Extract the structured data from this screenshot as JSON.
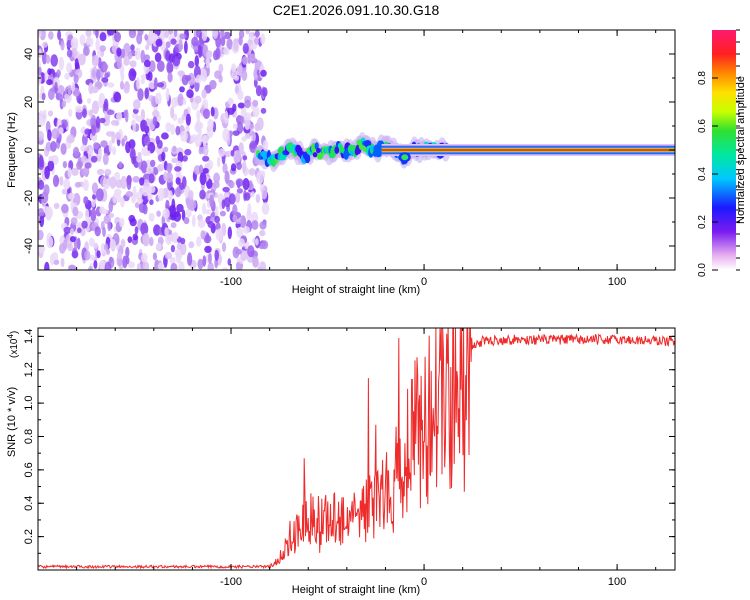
{
  "title": "C2E1.2026.091.10.30.G18",
  "chart_data": [
    {
      "type": "heatmap",
      "name": "spectrogram",
      "xlabel": "Height of straight line (km)",
      "ylabel": "Frequency (Hz)",
      "xlim": [
        -200,
        130
      ],
      "ylim": [
        -50,
        50
      ],
      "x_ticks": [
        {
          "value": -100,
          "label": "-100"
        },
        {
          "value": 0,
          "label": "0"
        },
        {
          "value": 100,
          "label": "100"
        }
      ],
      "y_ticks": [
        {
          "value": 40,
          "label": "40"
        },
        {
          "value": 20,
          "label": "20"
        },
        {
          "value": 0,
          "label": "0"
        },
        {
          "value": -20,
          "label": "-20"
        },
        {
          "value": -40,
          "label": "-40"
        }
      ],
      "noise_region_x": [
        -200,
        -84
      ],
      "signal_track": [
        [
          -86,
          -3
        ],
        [
          -80,
          -4
        ],
        [
          -74,
          -2
        ],
        [
          -68,
          1
        ],
        [
          -62,
          -3
        ],
        [
          -56,
          0
        ],
        [
          -50,
          -2
        ],
        [
          -44,
          1
        ],
        [
          -38,
          -1
        ],
        [
          -32,
          2
        ],
        [
          -26,
          0
        ],
        [
          -20,
          1
        ],
        [
          -16,
          0
        ],
        [
          -12,
          -2
        ],
        [
          -9,
          -3
        ],
        [
          -6,
          0
        ],
        [
          0,
          0
        ],
        [
          30,
          0
        ],
        [
          130,
          0
        ]
      ],
      "colorbar": {
        "label": "Normalized spectral amplitude",
        "range": [
          0,
          1
        ],
        "ticks": [
          {
            "value": 0.0,
            "label": "0.0"
          },
          {
            "value": 0.2,
            "label": "0.2"
          },
          {
            "value": 0.4,
            "label": "0.4"
          },
          {
            "value": 0.6,
            "label": "0.6"
          },
          {
            "value": 0.8,
            "label": "0.8"
          }
        ]
      }
    },
    {
      "type": "line",
      "name": "snr",
      "xlabel": "Height of straight line (km)",
      "ylabel": "SNR (10 * v/v)",
      "y_multiplier": "(x10",
      "y_multiplier_exp": "4",
      "y_multiplier_close": ")",
      "xlim": [
        -200,
        130
      ],
      "ylim": [
        0,
        1.45
      ],
      "x_ticks": [
        {
          "value": -100,
          "label": "-100"
        },
        {
          "value": 0,
          "label": "0"
        },
        {
          "value": 100,
          "label": "100"
        }
      ],
      "y_ticks": [
        {
          "value": 0.2,
          "label": "0.2"
        },
        {
          "value": 0.4,
          "label": "0.4"
        },
        {
          "value": 0.6,
          "label": "0.6"
        },
        {
          "value": 0.8,
          "label": "0.8"
        },
        {
          "value": 1.0,
          "label": "1.0"
        },
        {
          "value": 1.2,
          "label": "1.2"
        },
        {
          "value": 1.4,
          "label": "1.4"
        }
      ],
      "color": "#ee2a2a",
      "envelope": [
        [
          -200,
          0.02
        ],
        [
          -80,
          0.02
        ],
        [
          -76,
          0.05
        ],
        [
          -70,
          0.18
        ],
        [
          -62,
          0.33
        ],
        [
          -55,
          0.3
        ],
        [
          -48,
          0.3
        ],
        [
          -40,
          0.32
        ],
        [
          -32,
          0.35
        ],
        [
          -24,
          0.4
        ],
        [
          -18,
          0.58
        ],
        [
          -14,
          0.6
        ],
        [
          -10,
          0.7
        ],
        [
          -6,
          0.8
        ],
        [
          -2,
          0.9
        ],
        [
          4,
          1.0
        ],
        [
          10,
          1.12
        ],
        [
          16,
          1.24
        ],
        [
          22,
          1.32
        ],
        [
          30,
          1.37
        ],
        [
          40,
          1.38
        ],
        [
          60,
          1.38
        ],
        [
          100,
          1.38
        ],
        [
          130,
          1.37
        ]
      ],
      "spikes": [
        [
          -13,
          1.39
        ],
        [
          -29,
          1.15
        ],
        [
          -62,
          0.67
        ],
        [
          -25,
          0.87
        ],
        [
          -1,
          0.9
        ],
        [
          -2,
          0.37
        ],
        [
          -12,
          0.4
        ]
      ]
    }
  ]
}
